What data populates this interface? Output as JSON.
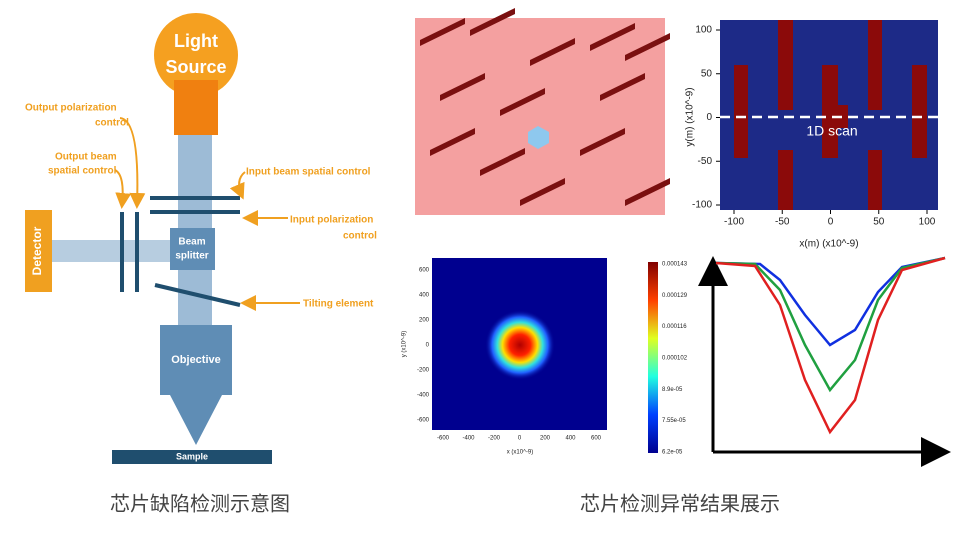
{
  "diagram": {
    "light_source": [
      "Light",
      "Source"
    ],
    "labels": {
      "output_polarization": [
        "Output polarization",
        "control"
      ],
      "output_beam": [
        "Output beam",
        "spatial control"
      ],
      "input_beam": "Input beam spatial control",
      "input_polarization": [
        "Input polarization",
        "control"
      ],
      "detector": "Detector",
      "beam_splitter": [
        "Beam",
        "splitter"
      ],
      "tilting": "Tilting element",
      "objective": "Objective",
      "sample": "Sample"
    },
    "caption": "芯片缺陷检测示意图"
  },
  "scan_plot": {
    "yticks": [
      "100",
      "50",
      "0",
      "-50",
      "-100"
    ],
    "xticks": [
      "-100",
      "-50",
      "0",
      "50",
      "100"
    ],
    "ylabel": "y(m) (x10^-9)",
    "xlabel": "x(m) (x10^-9)",
    "annotation": "1D scan"
  },
  "heatmap": {
    "xticks": [
      "-600",
      "-400",
      "-200",
      "0",
      "200",
      "400",
      "600"
    ],
    "yticks": [
      "600",
      "400",
      "200",
      "0",
      "-200",
      "-400",
      "-600"
    ],
    "xlabel": "x (x10^-9)",
    "ylabel": "y (x10^-9)",
    "colorbar": [
      "0.000143",
      "0.000129",
      "0.000116",
      "0.000102",
      "8.9e-05",
      "7.55e-05",
      "6.2e-05"
    ]
  },
  "caption": "芯片检测异常结果展示"
}
